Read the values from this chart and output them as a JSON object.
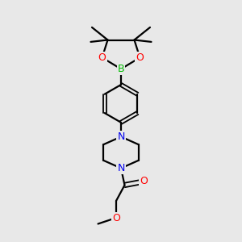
{
  "background_color": "#e8e8e8",
  "bond_color": "#000000",
  "atom_colors": {
    "B": "#00bb00",
    "O": "#ff0000",
    "N": "#0000ee",
    "C": "#000000"
  },
  "figsize": [
    3.0,
    3.0
  ],
  "dpi": 100
}
